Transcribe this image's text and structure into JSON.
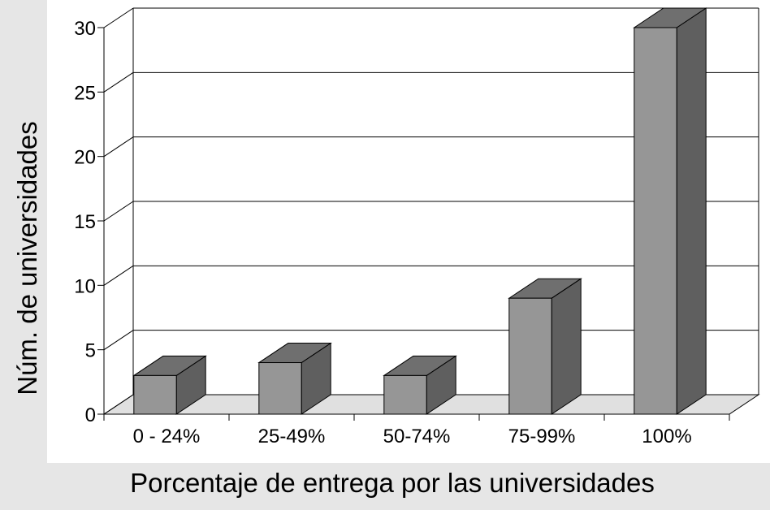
{
  "chart_data": {
    "type": "bar",
    "categories": [
      "0 - 24%",
      "25-49%",
      "50-74%",
      "75-99%",
      "100%"
    ],
    "values": [
      3,
      4,
      3,
      9,
      30
    ],
    "xlabel": "Porcentaje de entrega por las universidades",
    "ylabel": "Núm. de universidades",
    "ylim": [
      0,
      30
    ],
    "yticks": [
      0,
      5,
      10,
      15,
      20,
      25,
      30
    ],
    "grid": true,
    "three_d": true,
    "colors": {
      "bar_front": "#969696",
      "bar_top": "#6f6f6f",
      "bar_side": "#5f5f5f",
      "floor": "#e0e0e0",
      "panel": "#e6e6e6"
    }
  }
}
